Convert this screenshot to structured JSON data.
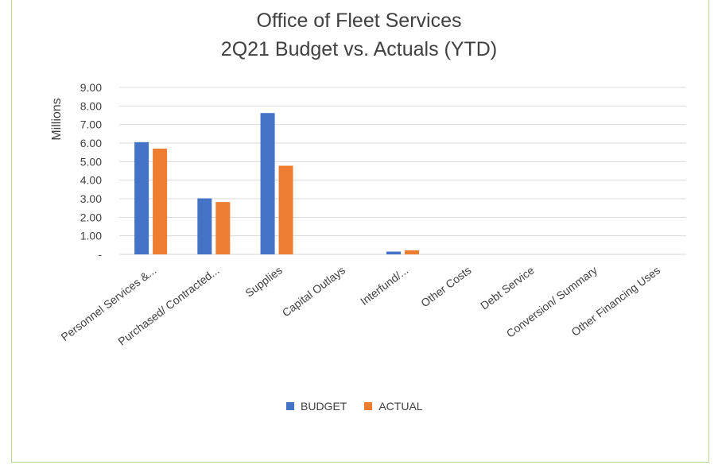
{
  "chart_data": {
    "type": "bar",
    "title": "Office of Fleet Services",
    "subtitle": "2Q21 Budget vs. Actuals (YTD)",
    "xlabel": "",
    "ylabel": "Millions",
    "ylim": [
      0,
      9
    ],
    "yticks": [
      "-",
      "1.00",
      "2.00",
      "3.00",
      "4.00",
      "5.00",
      "6.00",
      "7.00",
      "8.00",
      "9.00"
    ],
    "grid": true,
    "legend_position": "bottom",
    "categories": [
      "Personnel Services &...",
      "Purchased/ Contracted...",
      "Supplies",
      "Capital Outlays",
      "Interfund/...",
      "Other Costs",
      "Debt Service",
      "Conversion/ Summary",
      "Other Financing Uses"
    ],
    "series": [
      {
        "name": "BUDGET",
        "color": "#4472c4",
        "values": [
          6.05,
          3.02,
          7.62,
          0,
          0.15,
          0,
          0,
          0,
          0
        ]
      },
      {
        "name": "ACTUAL",
        "color": "#ed7d31",
        "values": [
          5.7,
          2.82,
          4.78,
          0,
          0.22,
          0,
          0,
          0,
          0
        ]
      }
    ]
  }
}
